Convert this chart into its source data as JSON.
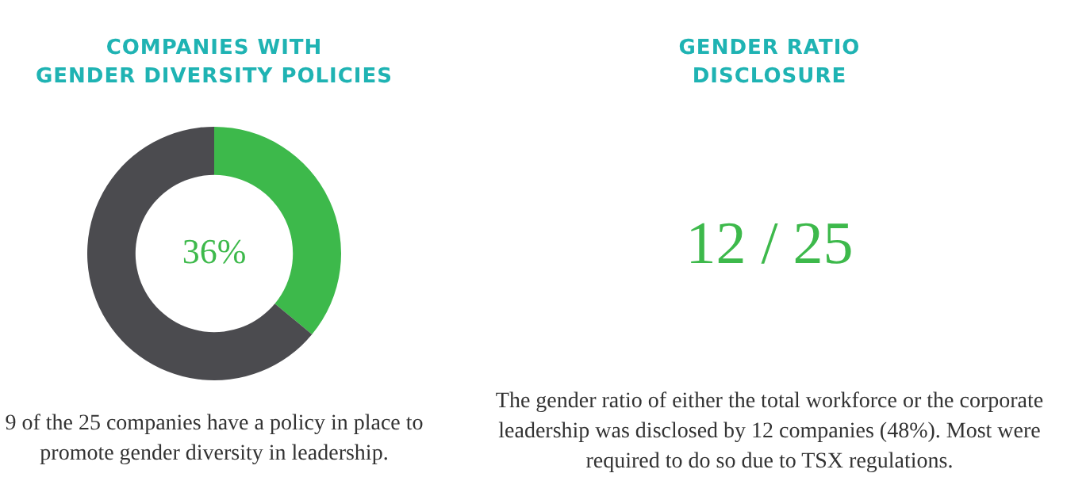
{
  "chart_data": [
    {
      "type": "donut",
      "title": "COMPANIES WITH\nGENDER DIVERSITY POLICIES",
      "categories": [
        null,
        null
      ],
      "values": [
        36,
        64
      ],
      "colors": [
        "#3db94b",
        "#4b4b4f"
      ],
      "value_labels": [
        "36%",
        null
      ],
      "annotations": [
        "9 of the 25 companies have a policy in place to promote gender diversity in leadership."
      ]
    },
    {
      "type": "other",
      "title": "GENDER RATIO\nDISCLOSURE",
      "annotations": [
        "12 / 25",
        "The gender ratio of either the total workforce or the corporate leadership was disclosed by 12 companies (48%). Most were required to do so due to TSX regulations."
      ]
    }
  ]
}
